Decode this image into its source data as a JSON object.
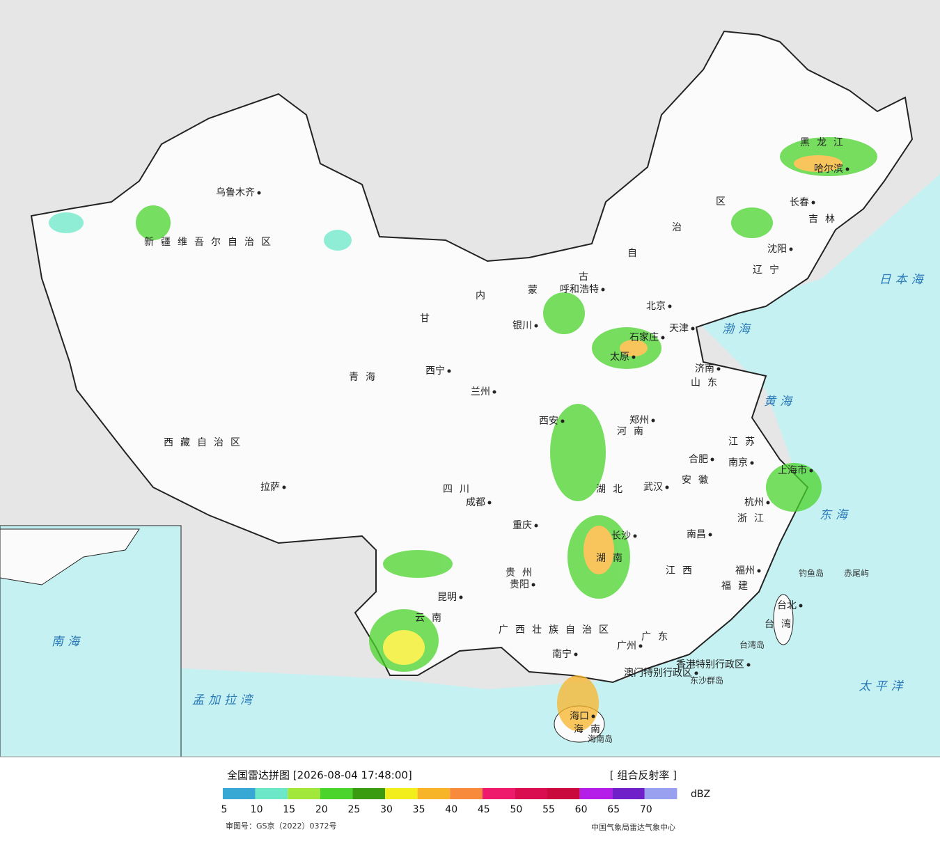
{
  "places": [
    "乌鲁木齐",
    "新疆维吾尔自治区",
    "西藏自治区",
    "拉萨",
    "青海",
    "西宁",
    "兰州",
    "甘",
    "内",
    "蒙",
    "古",
    "自",
    "治",
    "区",
    "呼和浩特",
    "银川",
    "北京",
    "天津",
    "石家庄",
    "太原",
    "济南",
    "山东",
    "郑州",
    "河南",
    "西安",
    "四川",
    "成都",
    "重庆",
    "武汉",
    "湖北",
    "合肥",
    "安徽",
    "南京",
    "江苏",
    "上海市",
    "杭州",
    "浙江",
    "长沙",
    "湖南",
    "南昌",
    "江西",
    "福州",
    "福建",
    "贵阳",
    "贵州",
    "昆明",
    "云南",
    "南宁",
    "广西壮族自治区",
    "广州",
    "广东",
    "海口",
    "海南",
    "台北",
    "台湾",
    "哈尔滨",
    "黑龙江",
    "长春",
    "吉林",
    "沈阳",
    "辽宁",
    "香港特别行政区",
    "澳门特别行政区"
  ],
  "seas": [
    "日本海",
    "黄海",
    "渤海",
    "东海",
    "太平洋",
    "孟加拉湾",
    "南海"
  ],
  "islands": [
    "钓鱼岛",
    "赤尾屿",
    "台湾岛",
    "东沙群岛",
    "海南岛"
  ],
  "legend": {
    "title": "全国雷达拼图 [2026-08-04 17:48:00]",
    "product": "[ 组合反射率 ]",
    "unit": "dBZ",
    "colors": [
      "#37a8d4",
      "#6ce8c8",
      "#a2e83c",
      "#4ad42c",
      "#3a9a10",
      "#f2ee1e",
      "#f8b428",
      "#f88a3c",
      "#ee1a6c",
      "#d80e50",
      "#c80a3c",
      "#b41ee8",
      "#7020c8",
      "#9aa0f0"
    ],
    "ticks": [
      5,
      10,
      15,
      20,
      25,
      30,
      35,
      40,
      45,
      50,
      55,
      60,
      65,
      70
    ]
  },
  "footer": {
    "approval": "审图号：GS京（2022）0372号",
    "source": "中国气象局雷达气象中心"
  }
}
